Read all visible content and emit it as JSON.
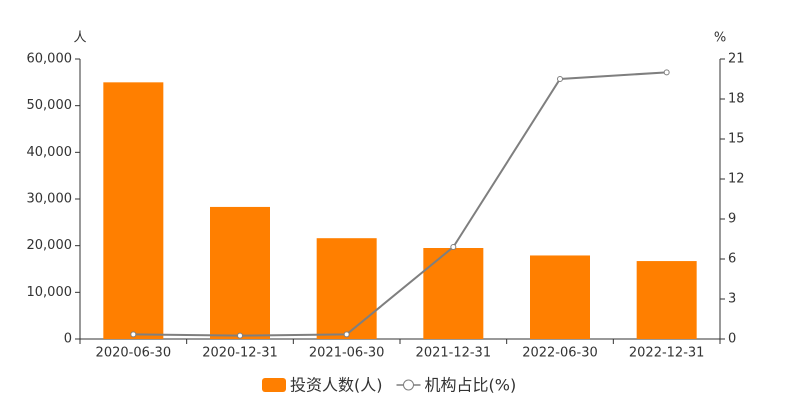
{
  "chart_data": {
    "type": "bar",
    "y_unit": "人",
    "y2_unit": "%",
    "categories": [
      "2020-06-30",
      "2020-12-31",
      "2021-06-30",
      "2021-12-31",
      "2022-06-30",
      "2022-12-31"
    ],
    "series": [
      {
        "name": "投资人数(人)",
        "type": "bar",
        "color": "#ff7f00",
        "values": [
          55000,
          28300,
          21600,
          19500,
          17900,
          16700
        ]
      },
      {
        "name": "机构占比(%)",
        "type": "line",
        "axis": "y2",
        "color": "#7f7f7f",
        "values": [
          0.35,
          0.25,
          0.35,
          6.9,
          19.5,
          20.0
        ]
      }
    ],
    "ylim": [
      0,
      60000
    ],
    "yticks": [
      0,
      {
        "value": 10000,
        "label": "10,000"
      },
      {
        "value": 20000,
        "label": "20,000"
      },
      {
        "value": 30000,
        "label": "30,000"
      },
      {
        "value": 40000,
        "label": "40,000"
      },
      {
        "value": 50000,
        "label": "50,000"
      },
      {
        "value": 60000,
        "label": "60,000"
      }
    ],
    "y2lim": [
      0,
      21
    ],
    "y2ticks": [
      0,
      3,
      6,
      9,
      12,
      15,
      18,
      21
    ],
    "legend": "bottom"
  }
}
